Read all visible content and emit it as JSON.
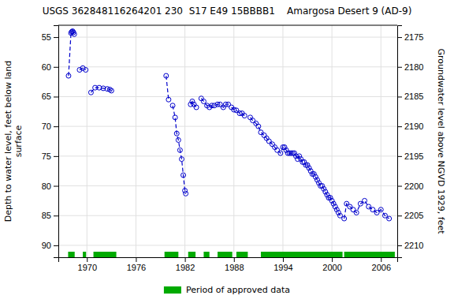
{
  "chart_data": {
    "type": "line",
    "title": "USGS 362848116264201 230  S17 E49 15BBBB1    Amargosa Desert 9 (AD-9)",
    "ylabel": "Depth to water level, feet below land\nsurface",
    "y2label": "Groundwater level above NGVD 1929, feet",
    "xlim": [
      1966.5,
      2008
    ],
    "ylim": [
      92,
      53
    ],
    "y2lim": [
      2212,
      2173
    ],
    "xticks": [
      1970,
      1976,
      1982,
      1988,
      1994,
      2000,
      2006
    ],
    "yticks": [
      55,
      60,
      65,
      70,
      75,
      80,
      85,
      90
    ],
    "y2ticks": [
      2210,
      2205,
      2200,
      2195,
      2190,
      2185,
      2180,
      2175
    ],
    "grid": true,
    "legend": "bottom",
    "color": "#0000cc",
    "line_style": "dashed",
    "marker": "circle",
    "series": [
      {
        "type": "line",
        "x": [
          1967.75,
          1968.05,
          1968.15,
          1968.25,
          1968.35,
          1968.45
        ],
        "values": [
          61.5,
          54.3,
          54.1,
          54.0,
          54.2,
          54.5
        ]
      },
      {
        "type": "line",
        "x": [
          1969.1,
          1969.5,
          1969.85
        ],
        "values": [
          60.5,
          60.2,
          60.5
        ]
      },
      {
        "type": "line",
        "x": [
          1970.5,
          1971.0,
          1971.5,
          1972.0,
          1972.5,
          1972.8,
          1973.0
        ],
        "values": [
          64.3,
          63.5,
          63.5,
          63.6,
          63.7,
          63.8,
          64.0
        ]
      },
      {
        "type": "line",
        "x": [
          1979.7,
          1980.0
        ],
        "values": [
          61.5,
          65.5
        ]
      },
      {
        "type": "line",
        "x": [
          1980.5,
          1980.8,
          1981.0,
          1981.2,
          1981.4,
          1981.6,
          1981.8,
          1982.0,
          1982.1
        ],
        "values": [
          66.5,
          68.5,
          71.2,
          72.3,
          74.0,
          75.5,
          78.2,
          80.8,
          81.3
        ]
      },
      {
        "type": "line",
        "x": [
          1982.7,
          1982.9,
          1983.1,
          1983.4
        ],
        "values": [
          66.3,
          65.8,
          66.3,
          66.8
        ]
      },
      {
        "type": "line",
        "x": [
          1984.0,
          1984.3,
          1984.7,
          1985.0,
          1985.3,
          1985.6,
          1986.0,
          1986.3,
          1986.7,
          1987.0,
          1987.3
        ],
        "values": [
          65.3,
          65.8,
          66.5,
          66.8,
          66.5,
          66.5,
          66.3,
          66.3,
          66.8,
          66.3,
          66.3
        ]
      },
      {
        "type": "line",
        "x": [
          1987.7,
          1988.0,
          1988.3,
          1988.7,
          1989.0,
          1989.3
        ],
        "values": [
          66.8,
          67.2,
          67.3,
          67.8,
          67.8,
          68.2
        ]
      },
      {
        "type": "line",
        "x": [
          1990.0,
          1990.3,
          1990.7,
          1991.0,
          1991.3,
          1991.7,
          1992.0,
          1992.3,
          1992.7,
          1993.0,
          1993.3,
          1993.7,
          1994.0,
          1994.2,
          1994.4,
          1994.6,
          1994.8,
          1995.0,
          1995.2,
          1995.4,
          1995.6,
          1995.8,
          1996.0,
          1996.2,
          1996.4,
          1996.6,
          1996.8,
          1997.0,
          1997.2,
          1997.4,
          1997.6,
          1997.8,
          1998.0,
          1998.2,
          1998.4,
          1998.6,
          1998.8,
          1999.0,
          1999.2,
          1999.4,
          1999.6,
          1999.8,
          2000.0,
          2000.2,
          2000.4,
          2000.6,
          2000.8,
          2001.0
        ],
        "values": [
          68.5,
          69.0,
          69.5,
          70.0,
          71.0,
          71.5,
          72.0,
          72.5,
          73.0,
          73.5,
          74.0,
          74.5,
          73.5,
          73.5,
          74.0,
          74.5,
          74.5,
          74.5,
          74.5,
          74.5,
          75.0,
          75.5,
          75.0,
          75.5,
          76.0,
          76.0,
          76.5,
          76.5,
          77.0,
          77.5,
          78.0,
          78.0,
          78.5,
          79.0,
          79.5,
          80.0,
          80.0,
          80.5,
          81.0,
          81.5,
          82.0,
          82.0,
          82.5,
          83.0,
          83.5,
          84.0,
          84.5,
          85.0
        ]
      },
      {
        "type": "line",
        "x": [
          2001.5,
          2001.8,
          2002.2,
          2002.6,
          2003.0,
          2003.5,
          2004.0,
          2004.5,
          2005.0,
          2005.5,
          2006.0,
          2006.5,
          2007.0
        ],
        "values": [
          85.5,
          83.0,
          83.5,
          84.0,
          84.5,
          83.0,
          82.5,
          83.5,
          84.0,
          84.5,
          84.0,
          85.0,
          85.5
        ]
      },
      {
        "type": "span",
        "name": "Period of approved data",
        "color": "#00aa00",
        "periods": [
          [
            1967.7,
            1968.5
          ],
          [
            1969.5,
            1969.9
          ],
          [
            1970.8,
            1973.6
          ],
          [
            1979.5,
            1981.2
          ],
          [
            1982.4,
            1983.3
          ],
          [
            1984.3,
            1985.0
          ],
          [
            1986.0,
            1987.8
          ],
          [
            1988.3,
            1989.7
          ],
          [
            1991.3,
            2001.3
          ],
          [
            2001.5,
            2007.7
          ]
        ]
      }
    ]
  }
}
